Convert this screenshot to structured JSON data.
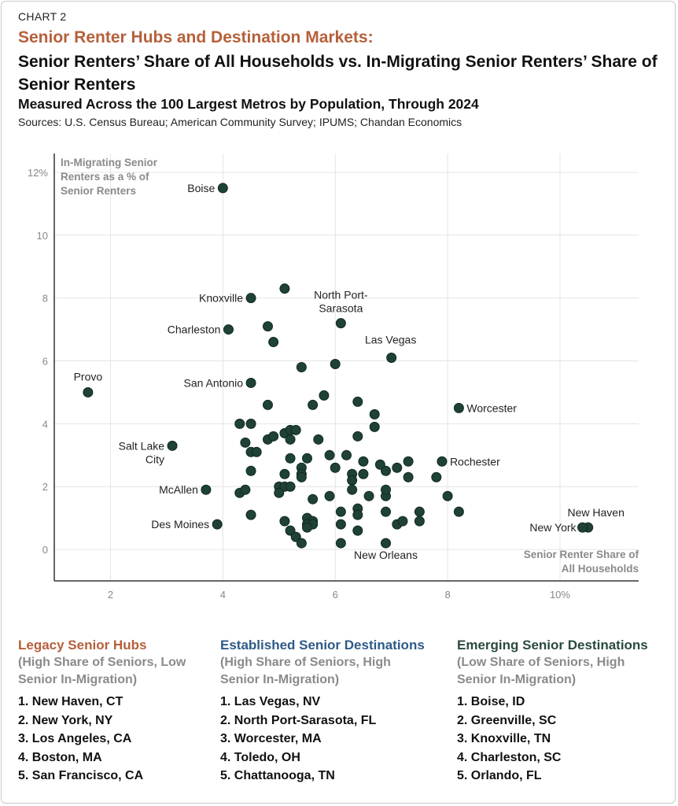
{
  "header": {
    "label": "CHART 2",
    "title": "Senior Renter Hubs and Destination Markets:",
    "subtitle": "Senior Renters’ Share of All Households vs. In-Migrating Senior Renters’ Share of Senior Renters",
    "subtitle2": "Measured Across the 100 Largest Metros by Population, Through 2024",
    "sources": "Sources: U.S. Census Bureau; American Community Survey; IPUMS; Chandan Economics"
  },
  "colors": {
    "title": "#b5603a",
    "dot": "#1f4136",
    "legacy": "#b5603a",
    "established": "#2e5a87",
    "emerging": "#2a4a3c"
  },
  "chart_data": {
    "type": "scatter",
    "xlabel": "Senior Renter Share of All Households",
    "ylabel": "In-Migrating Senior Renters as a % of Senior Renters",
    "xlim": [
      1,
      11.4
    ],
    "ylim": [
      -1,
      12.6
    ],
    "x_ticks": [
      {
        "value": 2,
        "label": "2"
      },
      {
        "value": 4,
        "label": "4"
      },
      {
        "value": 6,
        "label": "6"
      },
      {
        "value": 8,
        "label": "8"
      },
      {
        "value": 10,
        "label": "10%"
      }
    ],
    "y_ticks": [
      {
        "value": 0,
        "label": "0"
      },
      {
        "value": 2,
        "label": "2"
      },
      {
        "value": 4,
        "label": "4"
      },
      {
        "value": 6,
        "label": "6"
      },
      {
        "value": 8,
        "label": "8"
      },
      {
        "value": 10,
        "label": "10"
      },
      {
        "value": 12,
        "label": "12%"
      }
    ],
    "grid": true,
    "labeled_points": [
      {
        "name": "Boise",
        "x": 4.0,
        "y": 11.5
      },
      {
        "name": "Knoxville",
        "x": 4.5,
        "y": 8.0
      },
      {
        "name": "North Port-Sarasota",
        "x": 6.1,
        "y": 7.2
      },
      {
        "name": "Charleston",
        "x": 4.1,
        "y": 7.0
      },
      {
        "name": "Las Vegas",
        "x": 7.0,
        "y": 6.1
      },
      {
        "name": "Provo",
        "x": 1.6,
        "y": 5.0
      },
      {
        "name": "San Antonio",
        "x": 4.5,
        "y": 5.3
      },
      {
        "name": "Worcester",
        "x": 8.2,
        "y": 4.5
      },
      {
        "name": "Salt Lake City",
        "x": 3.1,
        "y": 3.3
      },
      {
        "name": "Rochester",
        "x": 7.9,
        "y": 2.8
      },
      {
        "name": "McAllen",
        "x": 3.7,
        "y": 1.9
      },
      {
        "name": "Des Moines",
        "x": 3.9,
        "y": 0.8
      },
      {
        "name": "New Orleans",
        "x": 6.9,
        "y": 0.2
      },
      {
        "name": "New Haven",
        "x": 10.5,
        "y": 0.7
      },
      {
        "name": "New York",
        "x": 10.4,
        "y": 0.7
      }
    ],
    "points": [
      [
        5.1,
        8.3
      ],
      [
        4.8,
        7.1
      ],
      [
        4.9,
        6.6
      ],
      [
        5.4,
        5.8
      ],
      [
        6.0,
        5.9
      ],
      [
        5.8,
        4.9
      ],
      [
        5.6,
        4.6
      ],
      [
        4.8,
        4.6
      ],
      [
        6.4,
        4.7
      ],
      [
        6.7,
        4.3
      ],
      [
        6.7,
        3.9
      ],
      [
        4.3,
        4.0
      ],
      [
        4.5,
        4.0
      ],
      [
        4.8,
        3.5
      ],
      [
        4.9,
        3.6
      ],
      [
        5.1,
        3.7
      ],
      [
        5.2,
        3.8
      ],
      [
        5.3,
        3.8
      ],
      [
        5.2,
        3.5
      ],
      [
        5.7,
        3.5
      ],
      [
        6.4,
        3.6
      ],
      [
        4.4,
        3.4
      ],
      [
        4.5,
        3.1
      ],
      [
        4.6,
        3.1
      ],
      [
        5.2,
        2.9
      ],
      [
        5.5,
        2.9
      ],
      [
        5.9,
        3.0
      ],
      [
        6.2,
        3.0
      ],
      [
        6.5,
        2.8
      ],
      [
        6.8,
        2.7
      ],
      [
        7.1,
        2.6
      ],
      [
        7.3,
        2.8
      ],
      [
        4.5,
        2.5
      ],
      [
        5.1,
        2.4
      ],
      [
        5.4,
        2.6
      ],
      [
        5.4,
        2.4
      ],
      [
        5.4,
        2.3
      ],
      [
        6.0,
        2.6
      ],
      [
        6.3,
        2.4
      ],
      [
        6.3,
        2.2
      ],
      [
        6.5,
        2.4
      ],
      [
        6.9,
        2.5
      ],
      [
        7.3,
        2.3
      ],
      [
        7.8,
        2.3
      ],
      [
        5.0,
        2.0
      ],
      [
        5.1,
        2.0
      ],
      [
        5.0,
        1.8
      ],
      [
        5.2,
        2.0
      ],
      [
        4.3,
        1.8
      ],
      [
        4.4,
        1.9
      ],
      [
        5.6,
        1.6
      ],
      [
        5.9,
        1.7
      ],
      [
        6.3,
        1.9
      ],
      [
        6.6,
        1.7
      ],
      [
        6.9,
        1.7
      ],
      [
        6.9,
        1.9
      ],
      [
        8.0,
        1.7
      ],
      [
        4.5,
        1.1
      ],
      [
        5.1,
        0.9
      ],
      [
        5.5,
        1.0
      ],
      [
        5.6,
        0.9
      ],
      [
        5.5,
        0.8
      ],
      [
        5.6,
        0.8
      ],
      [
        6.1,
        1.2
      ],
      [
        6.4,
        1.3
      ],
      [
        6.4,
        1.1
      ],
      [
        6.9,
        1.2
      ],
      [
        7.5,
        1.2
      ],
      [
        8.2,
        1.2
      ],
      [
        6.1,
        0.8
      ],
      [
        7.1,
        0.8
      ],
      [
        7.2,
        0.9
      ],
      [
        7.5,
        0.9
      ],
      [
        5.2,
        0.6
      ],
      [
        5.3,
        0.4
      ],
      [
        5.5,
        0.7
      ],
      [
        6.4,
        0.6
      ],
      [
        5.4,
        0.2
      ],
      [
        6.1,
        0.2
      ]
    ]
  },
  "legend": [
    {
      "title": "Legacy Senior Hubs",
      "subtitle": "(High Share of Seniors, Low Senior In-Migration)",
      "items": [
        "1. New Haven, CT",
        "2. New York, NY",
        "3. Los Angeles, CA",
        "4. Boston, MA",
        "5. San Francisco, CA"
      ]
    },
    {
      "title": "Established Senior Destinations",
      "subtitle": "(High Share of Seniors, High Senior In-Migration)",
      "items": [
        "1. Las Vegas, NV",
        "2. North Port-Sarasota, FL",
        "3. Worcester, MA",
        "4. Toledo, OH",
        "5. Chattanooga, TN"
      ]
    },
    {
      "title": "Emerging Senior Destinations",
      "subtitle": "(Low Share of Seniors, High Senior In-Migration)",
      "items": [
        "1. Boise, ID",
        "2. Greenville, SC",
        "3. Knoxville, TN",
        "4. Charleston, SC",
        "5. Orlando, FL"
      ]
    }
  ]
}
